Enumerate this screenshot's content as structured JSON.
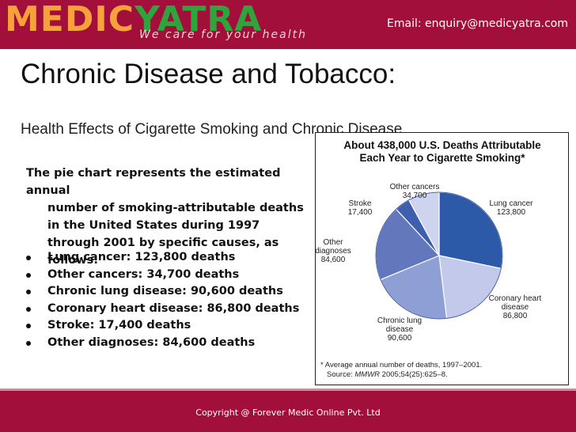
{
  "header": {
    "logo_part1": "MEDIC",
    "logo_part2": "YATRA",
    "tagline": "We care for your health",
    "email": "Email: enquiry@medicyatra.com"
  },
  "slide": {
    "title": "Chronic Disease and Tobacco:",
    "subtitle": "Health Effects of Cigarette Smoking and Chronic Disease",
    "intro_first": "The pie chart represents the estimated annual",
    "intro_rest": "number of smoking-attributable deaths in the United States during 1997 through 2001 by specific causes, as follows:",
    "bullets": [
      "Lung cancer: 123,800 deaths",
      "Other cancers: 34,700 deaths",
      "Chronic lung disease: 90,600 deaths",
      "Coronary heart disease: 86,800 deaths",
      "Stroke: 17,400 deaths",
      "Other diagnoses: 84,600 deaths"
    ]
  },
  "chart_data": {
    "type": "pie",
    "title_line1": "About 438,000 U.S. Deaths Attributable",
    "title_line2": "Each Year to Cigarette Smoking*",
    "slices": [
      {
        "label_lines": [
          "Lung cancer",
          "123,800"
        ],
        "value": 123800,
        "color": "#2d5aa8"
      },
      {
        "label_lines": [
          "Coronary heart",
          "disease",
          "86,800"
        ],
        "value": 86800,
        "color": "#c3c9ea"
      },
      {
        "label_lines": [
          "Chronic lung",
          "disease",
          "90,600"
        ],
        "value": 90600,
        "color": "#8e9fd6"
      },
      {
        "label_lines": [
          "Other",
          "diagnoses",
          "84,600"
        ],
        "value": 84600,
        "color": "#6378bc"
      },
      {
        "label_lines": [
          "Stroke",
          "17,400"
        ],
        "value": 17400,
        "color": "#3d5fae"
      },
      {
        "label_lines": [
          "Other cancers",
          "34,700"
        ],
        "value": 34700,
        "color": "#cfd4ee"
      }
    ],
    "footnote_line1": "* Average annual number of deaths, 1997–2001.",
    "footnote_source_prefix": "Source: ",
    "footnote_source_journal": "MMWR",
    "footnote_source_suffix": " 2005;54(25):625–8."
  },
  "footer": {
    "copyright": "Copyright @ Forever Medic Online Pvt. Ltd"
  }
}
